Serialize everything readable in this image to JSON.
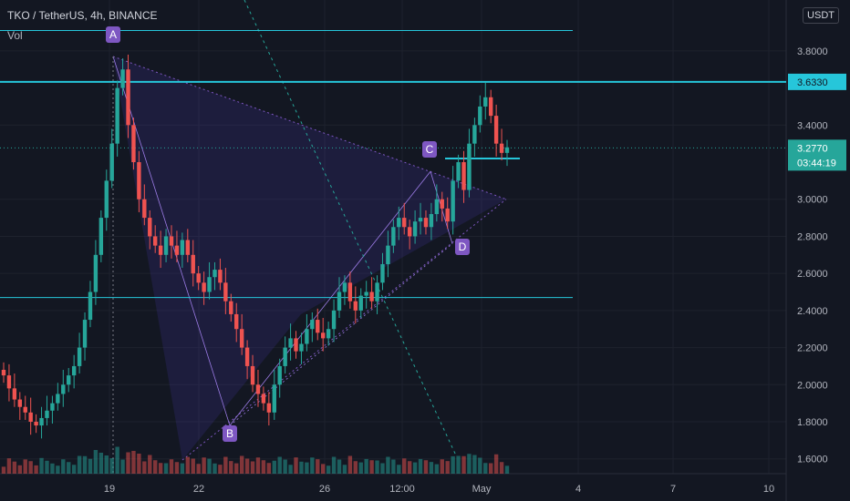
{
  "header": {
    "symbol": "TKO / TetherUS, 4h, BINANCE",
    "indicator": "Vol"
  },
  "axis": {
    "unit": "USDT",
    "right_ticks": [
      "3.8000",
      "3.6330",
      "3.4000",
      "3.2770",
      "3.0000",
      "2.8000",
      "2.6000",
      "2.4000",
      "2.2000",
      "2.0000",
      "1.8000",
      "1.6000"
    ],
    "x_ticks": [
      "19",
      "22",
      "26",
      "12:00",
      "May",
      "4",
      "7",
      "10"
    ]
  },
  "current": {
    "price": "3.2770",
    "countdown": "03:44:19"
  },
  "levels": [
    {
      "label": "3.6330"
    }
  ],
  "points": [
    {
      "label": "A"
    },
    {
      "label": "B"
    },
    {
      "label": "C"
    },
    {
      "label": "D"
    }
  ],
  "colors": {
    "bg": "#131722",
    "grid": "#1e222d",
    "up": "#26a69a",
    "down": "#ef5350",
    "level": "#26c6da",
    "pattern": "#7e57c2",
    "text": "#b2b5be"
  },
  "chart_data": {
    "type": "candlestick",
    "ylim": [
      1.52,
      4.05
    ],
    "price_levels": [
      3.91,
      3.633,
      2.47
    ],
    "pattern_points": {
      "A": 3.77,
      "B": 1.78,
      "C": 3.15,
      "D": 2.76
    },
    "current_price": 3.277,
    "series": [
      {
        "name": "close",
        "values": [
          2.05,
          1.98,
          1.92,
          1.88,
          1.85,
          1.8,
          1.78,
          1.82,
          1.86,
          1.9,
          1.95,
          2.0,
          2.05,
          2.1,
          2.2,
          2.35,
          2.5,
          2.7,
          2.9,
          3.1,
          3.3,
          3.6,
          3.7,
          3.4,
          3.2,
          3.0,
          2.9,
          2.8,
          2.75,
          2.7,
          2.8,
          2.75,
          2.7,
          2.78,
          2.7,
          2.6,
          2.55,
          2.5,
          2.58,
          2.62,
          2.55,
          2.45,
          2.38,
          2.3,
          2.2,
          2.1,
          2.0,
          1.95,
          1.9,
          1.85,
          2.0,
          2.1,
          2.2,
          2.25,
          2.18,
          2.22,
          2.3,
          2.35,
          2.28,
          2.25,
          2.3,
          2.4,
          2.5,
          2.55,
          2.45,
          2.4,
          2.48,
          2.5,
          2.45,
          2.55,
          2.65,
          2.75,
          2.85,
          2.9,
          2.85,
          2.8,
          2.88,
          2.9,
          2.85,
          2.92,
          3.0,
          2.95,
          2.88,
          3.1,
          3.2,
          3.05,
          3.3,
          3.4,
          3.5,
          3.55,
          3.45,
          3.3,
          3.25,
          3.28
        ]
      }
    ]
  }
}
